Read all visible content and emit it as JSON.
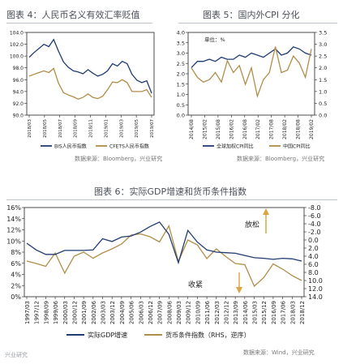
{
  "charts": {
    "c4": {
      "title": "图表 4：人民币名义有效汇率贬值",
      "source": "数据来源：Bloomberg，兴业研究",
      "legend": [
        "BIS人民币指数",
        "CFETS人民币指数"
      ],
      "colors": [
        "#1f3b73",
        "#b08d48"
      ]
    },
    "c5": {
      "title": "图表 5：国内外CPI 分化",
      "source": "数据来源：Bloomberg，兴业研究",
      "unit_label": "单位：%",
      "legend": [
        "全球加权CPI同比",
        "中国CPI同比"
      ],
      "colors": [
        "#1f3b73",
        "#b08d48"
      ]
    },
    "c6": {
      "title": "图表 6：实际GDP增速和货币条件指数",
      "source": "数据来源：Wind，兴业研究",
      "legend": [
        "实际GDP增速",
        "货币条件指数（RHS，逆序）"
      ],
      "annotation_up": "放松",
      "annotation_down": "收紧",
      "colors": [
        "#1f3b73",
        "#b08d48"
      ]
    }
  },
  "watermark": "兴业研究",
  "chart_data": [
    {
      "type": "line",
      "id": "c4",
      "x_ticks": [
        "2018/03",
        "2018/05",
        "2018/07",
        "2018/09",
        "2018/11",
        "2019/01",
        "2019/03",
        "2019/05",
        "2019/07"
      ],
      "ylim": [
        90.0,
        104.0
      ],
      "y_ticks": [
        "104.0",
        "102.0",
        "100.0",
        "98.0",
        "96.0",
        "94.0",
        "92.0",
        "90.0"
      ],
      "series": [
        {
          "name": "BIS人民币指数",
          "values": [
            99.8,
            100.6,
            101.3,
            102.0,
            101.6,
            102.8,
            100.8,
            99.0,
            98.1,
            97.5,
            97.3,
            97.0,
            97.7,
            97.1,
            96.6,
            96.9,
            97.5,
            98.7,
            98.3,
            99.1,
            98.7,
            96.9,
            95.9,
            95.5,
            95.8,
            93.7
          ]
        },
        {
          "name": "CFETS人民币指数",
          "values": [
            96.6,
            96.9,
            97.2,
            97.5,
            97.2,
            97.9,
            95.4,
            93.8,
            93.4,
            93.1,
            92.7,
            93.0,
            93.6,
            93.0,
            92.8,
            93.2,
            94.3,
            95.6,
            95.5,
            96.0,
            95.5,
            94.0,
            94.0,
            94.0,
            94.3,
            93.0
          ]
        }
      ]
    },
    {
      "type": "line",
      "id": "c5",
      "x_ticks": [
        "2014/08",
        "2015/02",
        "2015/08",
        "2016/02",
        "2016/08",
        "2017/02",
        "2017/08",
        "2018/02",
        "2018/08",
        "2019/02"
      ],
      "ylim_left": [
        0.0,
        4.0
      ],
      "ylim_right": [
        0.0,
        3.5
      ],
      "y_ticks_left": [
        "4.0",
        "3.5",
        "3.0",
        "2.5",
        "2.0",
        "1.5",
        "1.0",
        "0.5",
        "0.0"
      ],
      "y_ticks_right": [
        "3.5",
        "3.0",
        "2.5",
        "2.0",
        "1.5",
        "1.0",
        "0.5",
        "0.0"
      ],
      "series": [
        {
          "name": "全球加权CPI同比",
          "axis": "left",
          "values": [
            2.3,
            2.6,
            2.6,
            2.7,
            2.6,
            2.8,
            2.7,
            2.7,
            2.9,
            2.8,
            3.0,
            2.9,
            2.8,
            3.0,
            3.2,
            2.9,
            3.0,
            3.3,
            3.2,
            3.0,
            2.9
          ]
        },
        {
          "name": "中国CPI同比",
          "axis": "right",
          "values": [
            2.0,
            1.6,
            1.4,
            1.5,
            1.8,
            1.4,
            2.3,
            1.8,
            2.1,
            1.3,
            2.0,
            0.8,
            1.5,
            1.8,
            2.9,
            1.8,
            1.9,
            2.5,
            2.2,
            1.6,
            2.8
          ]
        }
      ]
    },
    {
      "type": "line",
      "id": "c6",
      "x_ticks": [
        "1997/03",
        "1997/12",
        "1998/09",
        "1999/06",
        "2000/03",
        "2000/12",
        "2001/09",
        "2002/06",
        "2003/03",
        "2003/12",
        "2004/09",
        "2005/06",
        "2006/03",
        "2006/12",
        "2007/09",
        "2008/06",
        "2009/03",
        "2009/12",
        "2010/09",
        "2011/06",
        "2012/03",
        "2012/12",
        "2013/09",
        "2014/06",
        "2015/03",
        "2015/12",
        "2016/09",
        "2017/06",
        "2018/03",
        "2018/12"
      ],
      "ylim_left": [
        0,
        16
      ],
      "y_ticks_left": [
        "16%",
        "14%",
        "12%",
        "10%",
        "8%",
        "6%",
        "4%",
        "2%",
        "0%"
      ],
      "ylim_right_reversed": [
        -8.0,
        14.0
      ],
      "y_ticks_right": [
        "-8.0",
        "-6.0",
        "-4.0",
        "-2.0",
        "0.0",
        "2.0",
        "4.0",
        "6.0",
        "8.0",
        "10.0",
        "12.0",
        "14.0"
      ],
      "series": [
        {
          "name": "实际GDP增速",
          "axis": "left",
          "values": [
            9.6,
            8.4,
            7.6,
            7.6,
            8.3,
            8.3,
            8.3,
            8.4,
            10.4,
            9.9,
            10.7,
            10.9,
            11.6,
            12.6,
            13.4,
            11.2,
            6.1,
            11.9,
            9.8,
            8.4,
            8.0,
            7.9,
            7.8,
            7.4,
            7.0,
            6.9,
            6.7,
            6.9,
            6.8,
            6.4
          ]
        },
        {
          "name": "货币条件指数（RHS，逆序）",
          "axis": "right",
          "values": [
            5.2,
            5.8,
            6.5,
            3.2,
            8.2,
            4.0,
            3.0,
            4.5,
            3.2,
            2.2,
            1.0,
            -1.2,
            -1.5,
            -0.8,
            0.5,
            -3.5,
            5.3,
            0.0,
            1.2,
            4.6,
            2.2,
            4.1,
            5.8,
            6.1,
            11.4,
            9.3,
            5.9,
            7.2,
            8.8,
            10.0
          ]
        }
      ]
    }
  ]
}
